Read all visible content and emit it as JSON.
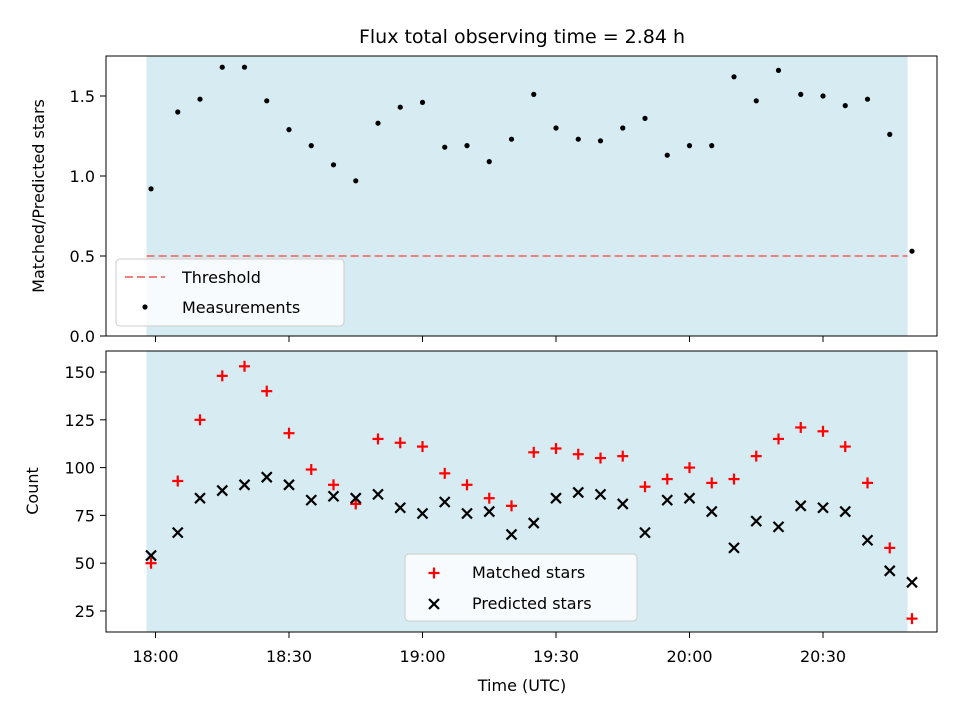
{
  "chart_data": [
    {
      "type": "scatter",
      "title": "Flux total observing time = 2.84 h",
      "xlabel": "",
      "ylabel": "Matched/Predicted stars",
      "ylim": [
        0,
        1.75
      ],
      "yticks": [
        "0.0",
        "0.5",
        "1.0",
        "1.5"
      ],
      "shaded_band": {
        "x_start": "17:58",
        "x_end": "20:49",
        "color": "#add8e6"
      },
      "threshold": {
        "name": "Threshold",
        "value": 0.5,
        "color": "#f08080",
        "style": "dashed"
      },
      "legend_position": "lower-left",
      "series": [
        {
          "name": "Measurements",
          "marker": "dot",
          "color": "#000000",
          "x": [
            "17:59",
            "18:05",
            "18:10",
            "18:15",
            "18:20",
            "18:25",
            "18:30",
            "18:35",
            "18:40",
            "18:45",
            "18:50",
            "18:55",
            "19:00",
            "19:05",
            "19:10",
            "19:15",
            "19:20",
            "19:25",
            "19:30",
            "19:35",
            "19:40",
            "19:45",
            "19:50",
            "19:55",
            "20:00",
            "20:05",
            "20:10",
            "20:15",
            "20:20",
            "20:25",
            "20:30",
            "20:35",
            "20:40",
            "20:45",
            "20:50"
          ],
          "values": [
            0.92,
            1.4,
            1.48,
            1.68,
            1.68,
            1.47,
            1.29,
            1.19,
            1.07,
            0.97,
            1.33,
            1.43,
            1.46,
            1.18,
            1.19,
            1.09,
            1.23,
            1.51,
            1.3,
            1.23,
            1.22,
            1.3,
            1.36,
            1.13,
            1.19,
            1.19,
            1.62,
            1.47,
            1.66,
            1.51,
            1.5,
            1.44,
            1.48,
            1.26,
            0.53
          ]
        }
      ]
    },
    {
      "type": "scatter",
      "title": "",
      "xlabel": "Time (UTC)",
      "ylabel": "Count",
      "ylim": [
        14,
        161
      ],
      "yticks": [
        "25",
        "50",
        "75",
        "100",
        "125",
        "150"
      ],
      "xticks": [
        "18:00",
        "18:30",
        "19:00",
        "19:30",
        "20:00",
        "20:30"
      ],
      "shaded_band": {
        "x_start": "17:58",
        "x_end": "20:49",
        "color": "#add8e6"
      },
      "legend_position": "lower-center",
      "series": [
        {
          "name": "Matched stars",
          "marker": "plus",
          "color": "#ff0000",
          "x": [
            "17:59",
            "18:05",
            "18:10",
            "18:15",
            "18:20",
            "18:25",
            "18:30",
            "18:35",
            "18:40",
            "18:45",
            "18:50",
            "18:55",
            "19:00",
            "19:05",
            "19:10",
            "19:15",
            "19:20",
            "19:25",
            "19:30",
            "19:35",
            "19:40",
            "19:45",
            "19:50",
            "19:55",
            "20:00",
            "20:05",
            "20:10",
            "20:15",
            "20:20",
            "20:25",
            "20:30",
            "20:35",
            "20:40",
            "20:45",
            "20:50"
          ],
          "values": [
            50,
            93,
            125,
            148,
            153,
            140,
            118,
            99,
            91,
            81,
            115,
            113,
            111,
            97,
            91,
            84,
            80,
            108,
            110,
            107,
            105,
            106,
            90,
            94,
            100,
            92,
            94,
            106,
            115,
            121,
            119,
            111,
            92,
            58,
            21
          ]
        },
        {
          "name": "Predicted stars",
          "marker": "x",
          "color": "#000000",
          "x": [
            "17:59",
            "18:05",
            "18:10",
            "18:15",
            "18:20",
            "18:25",
            "18:30",
            "18:35",
            "18:40",
            "18:45",
            "18:50",
            "18:55",
            "19:00",
            "19:05",
            "19:10",
            "19:15",
            "19:20",
            "19:25",
            "19:30",
            "19:35",
            "19:40",
            "19:45",
            "19:50",
            "19:55",
            "20:00",
            "20:05",
            "20:10",
            "20:15",
            "20:20",
            "20:25",
            "20:30",
            "20:35",
            "20:40",
            "20:45",
            "20:50"
          ],
          "values": [
            54,
            66,
            84,
            88,
            91,
            95,
            91,
            83,
            85,
            84,
            86,
            79,
            76,
            82,
            76,
            77,
            65,
            71,
            84,
            87,
            86,
            81,
            66,
            83,
            84,
            77,
            58,
            72,
            69,
            80,
            79,
            77,
            62,
            46,
            40
          ]
        }
      ]
    }
  ]
}
